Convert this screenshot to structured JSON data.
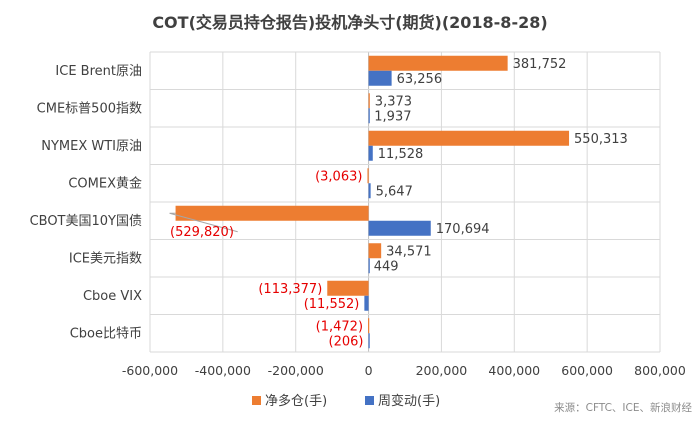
{
  "chart_data": {
    "type": "bar",
    "orientation": "horizontal",
    "title": "COT(交易员持仓报告)投机净头寸(期货)(2018-8-28)",
    "categories": [
      "ICE Brent原油",
      "CME标普500指数",
      "NYMEX WTI原油",
      "COMEX黄金",
      "CBOT美国10Y国债",
      "ICE美元指数",
      "Cboe VIX",
      "Cboe比特币"
    ],
    "series": [
      {
        "name": "净多仓(手)",
        "color": "#ed7d31",
        "values": [
          381752,
          3373,
          550313,
          -3063,
          -529820,
          34571,
          -113377,
          -1472
        ]
      },
      {
        "name": "周变动(手)",
        "color": "#4472c4",
        "values": [
          63256,
          1937,
          11528,
          5647,
          170694,
          449,
          -11552,
          -206
        ]
      }
    ],
    "value_labels": [
      [
        "381,752",
        "3,373",
        "550,313",
        "(3,063)",
        "(529,820)",
        "34,571",
        "(113,377)",
        "(1,472)"
      ],
      [
        "63,256",
        "1,937",
        "11,528",
        "5,647",
        "170,694",
        "449",
        "(11,552)",
        "(206)"
      ]
    ],
    "negative_label_color": "#e60000",
    "xlim": [
      -600000,
      800000
    ],
    "x_ticks": [
      -600000,
      -400000,
      -200000,
      0,
      200000,
      400000,
      600000,
      800000
    ],
    "x_tick_labels": [
      "-600,000",
      "-400,000",
      "-200,000",
      "0",
      "200,000",
      "400,000",
      "600,000",
      "800,000"
    ],
    "xlabel": "",
    "ylabel": "",
    "grid": true,
    "legend_position": "bottom",
    "source_note": "来源：CFTC、ICE、新浪财经"
  }
}
